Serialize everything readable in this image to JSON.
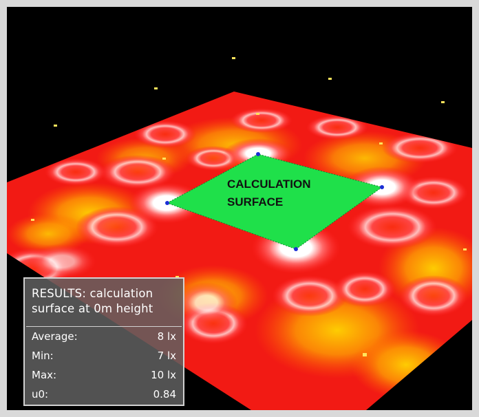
{
  "surface_label": {
    "line1": "CALCULATION",
    "line2": "SURFACE"
  },
  "results": {
    "title": "RESULTS: calculation surface at 0m height",
    "rows": [
      {
        "label": "Average:",
        "value": "8 lx"
      },
      {
        "label": "Min:",
        "value": "7 lx"
      },
      {
        "label": "Max:",
        "value": "10 lx"
      },
      {
        "label": "u0:",
        "value": "0.84"
      }
    ]
  },
  "colors": {
    "background": "#000000",
    "frame_border": "#d9d9d9",
    "heatmap_low": "#e8101a",
    "heatmap_mid": "#ff8c00",
    "heatmap_high": "#ffffff",
    "calculation_surface": "#1fe04a",
    "luminaire_marker": "#ffe45c"
  }
}
